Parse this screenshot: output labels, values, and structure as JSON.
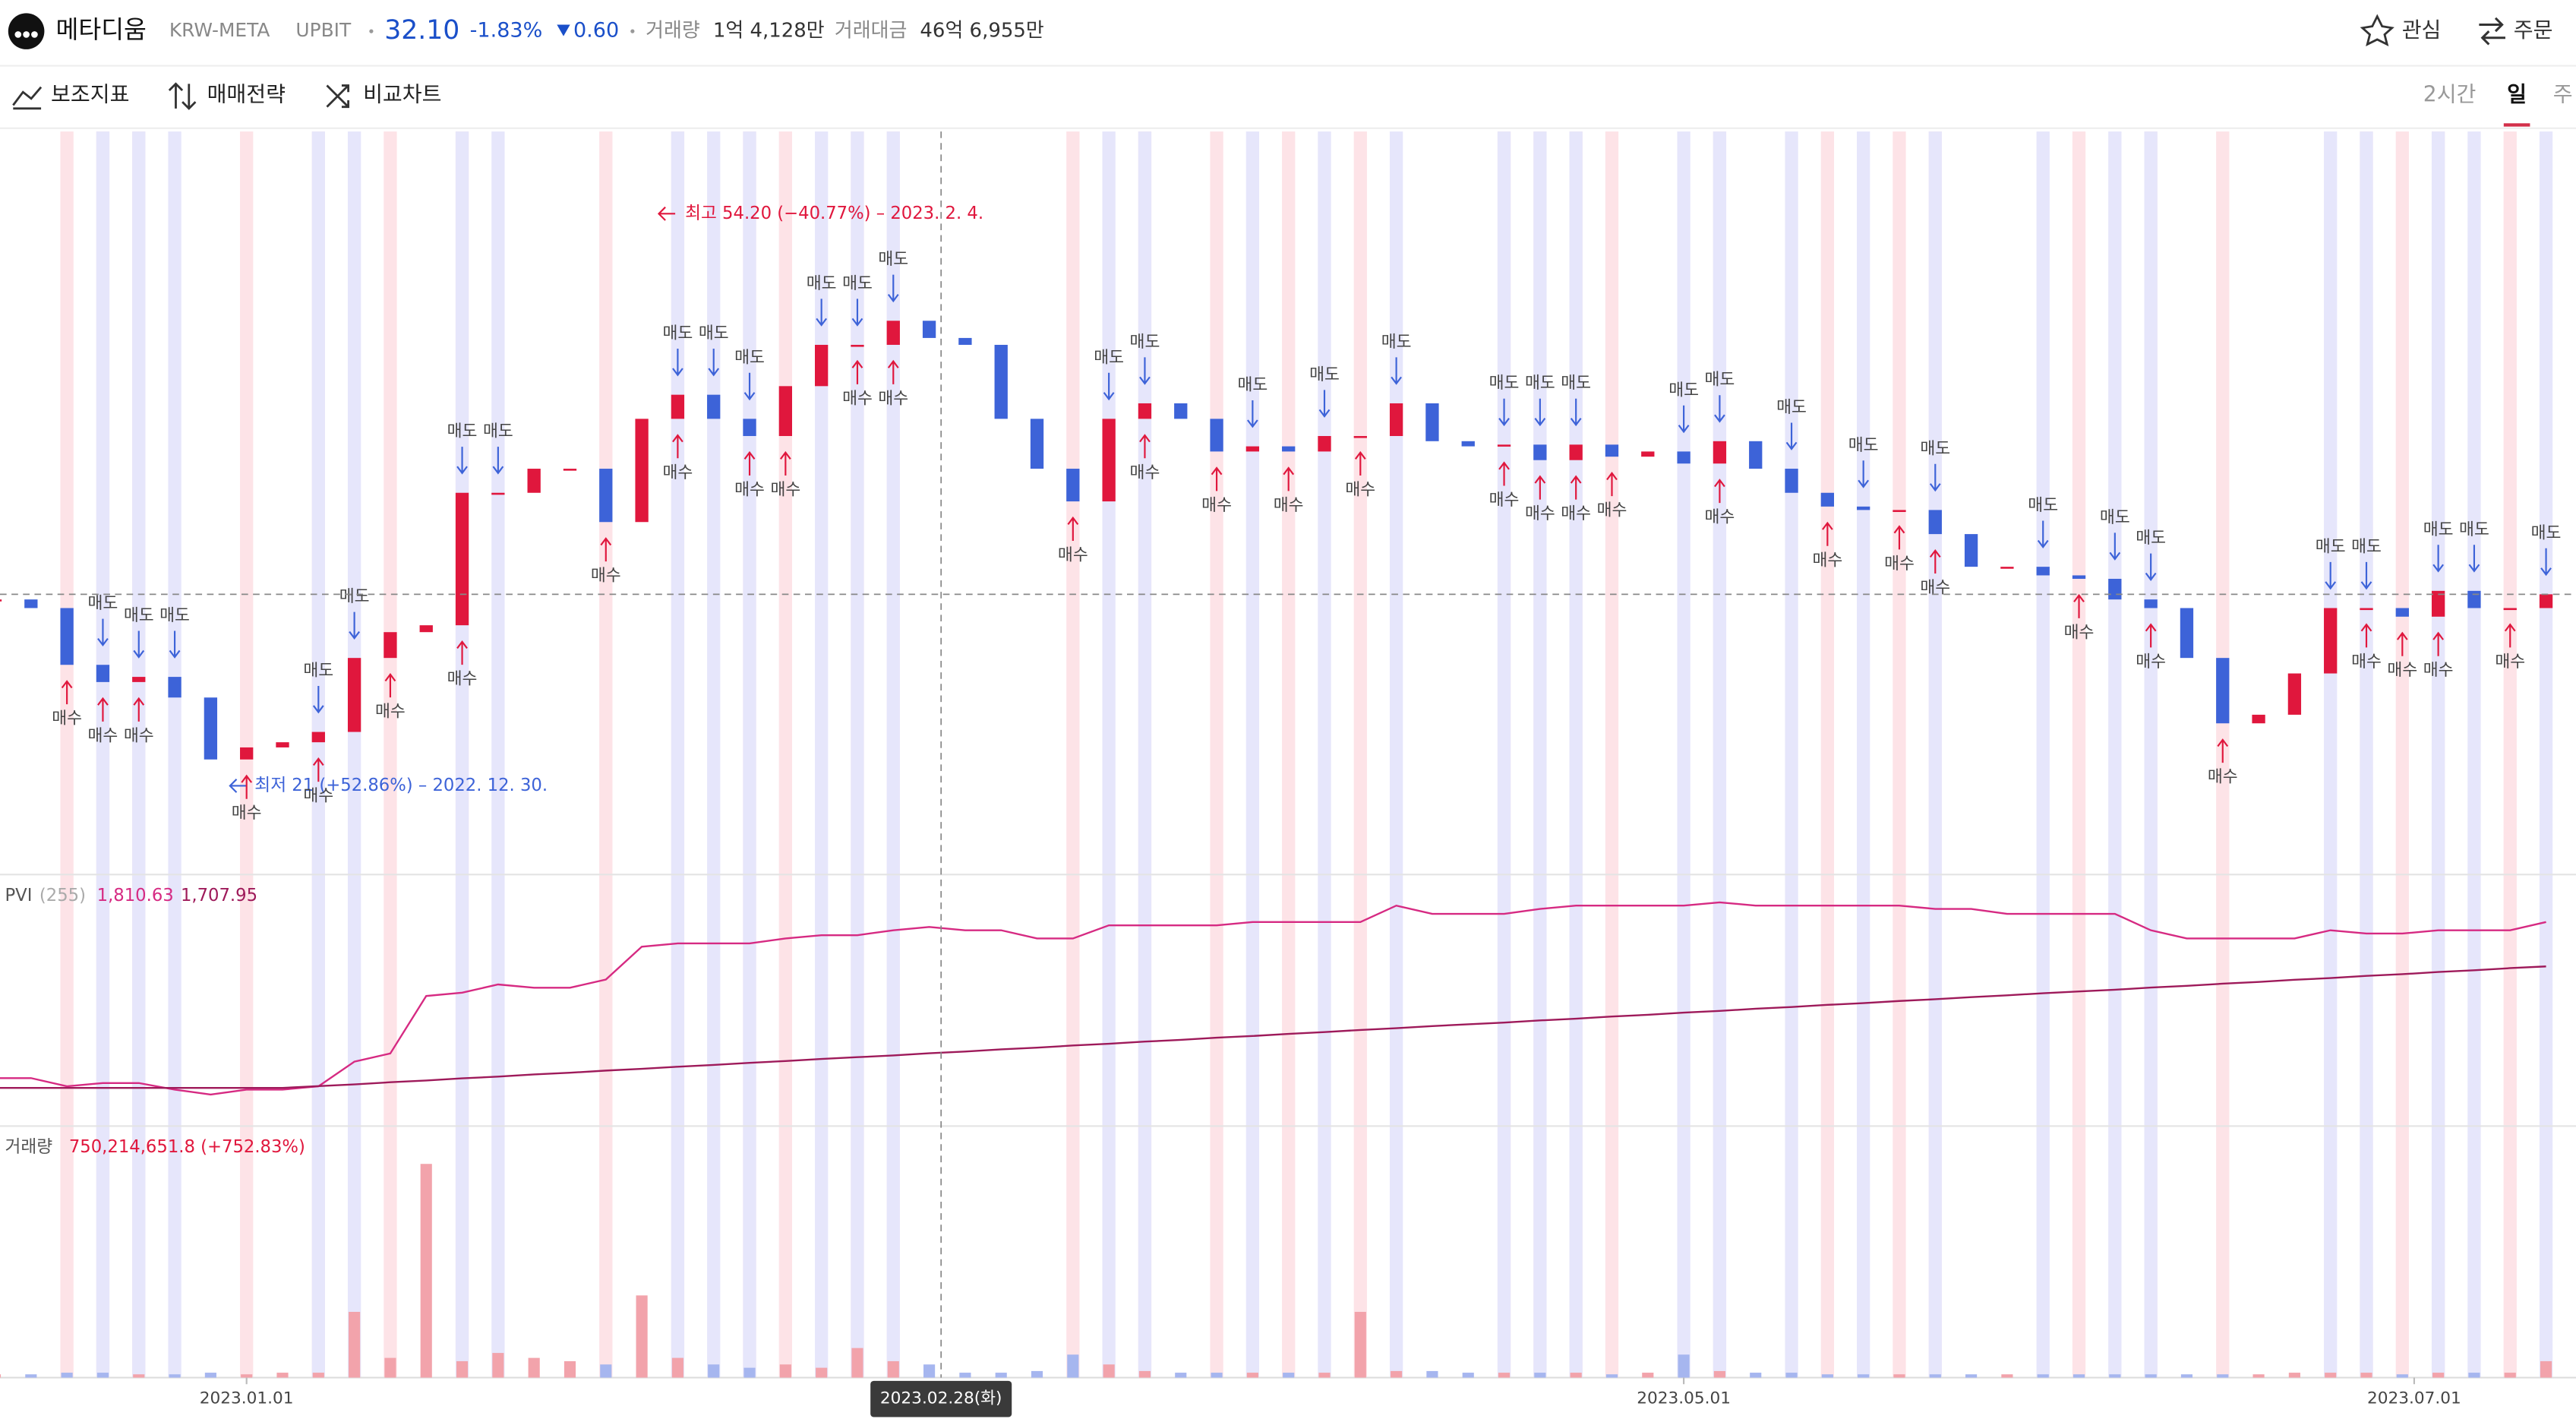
{
  "header": {
    "name": "메타디움",
    "market": "KRW-META",
    "exchange": "UPBIT",
    "price": "32.10",
    "change_rate": "-1.83%",
    "change": "0.60",
    "volume_label": "거래량",
    "volume": "1억 4,128만",
    "amount_label": "거래대금",
    "amount": "46억 6,955만",
    "watch": "관심",
    "order": "주문"
  },
  "toolbar": {
    "indicators": "보조지표",
    "strategy": "매매전략",
    "compare": "비교차트",
    "periods": [
      "2시간",
      "일",
      "주"
    ]
  },
  "chart_data": [
    {
      "type": "candlestick",
      "up_color": "#e0173d",
      "down_color": "#3d63d8",
      "ylim": [
        16,
        59
      ],
      "values": [
        31.8,
        31.3,
        28.0,
        27.0,
        27.3,
        26.1,
        22.5,
        23.2,
        23.5,
        24.1,
        28.4,
        29.9,
        30.3,
        38.0,
        38.0,
        39.4,
        39.4,
        36.3,
        42.3,
        43.7,
        42.3,
        41.3,
        44.2,
        46.6,
        46.6,
        48.0,
        47.0,
        46.6,
        42.3,
        39.4,
        37.5,
        42.3,
        43.2,
        42.3,
        40.4,
        40.7,
        40.4,
        41.3,
        41.3,
        43.2,
        41.0,
        40.7,
        40.8,
        39.9,
        40.8,
        40.1,
        40.4,
        39.7,
        41.0,
        39.4,
        38.0,
        37.2,
        37.0,
        37.0,
        35.6,
        33.7,
        33.7,
        33.2,
        33.0,
        31.8,
        31.3,
        28.4,
        24.6,
        25.1,
        27.5,
        31.3,
        31.3,
        30.8,
        32.3,
        31.3,
        31.3,
        32.1
      ],
      "high_text": "최고 54.20 (−40.77%) – 2023. 2. 4.",
      "low_text": "최저 21 (+52.86%) – 2022. 12. 30.",
      "signals": {
        "buy_label": "매수",
        "sell_label": "매도",
        "buy": [
          2,
          3,
          4,
          7,
          9,
          11,
          13,
          17,
          19,
          21,
          22,
          24,
          25,
          30,
          32,
          34,
          36,
          38,
          42,
          43,
          44,
          45,
          48,
          51,
          53,
          54,
          58,
          60,
          62,
          66,
          67,
          68,
          70
        ],
        "sell": [
          3,
          4,
          5,
          9,
          10,
          13,
          14,
          19,
          20,
          21,
          23,
          24,
          25,
          31,
          32,
          35,
          37,
          39,
          42,
          43,
          44,
          47,
          48,
          50,
          52,
          54,
          57,
          59,
          60,
          65,
          66,
          68,
          69,
          71
        ]
      }
    },
    {
      "type": "line",
      "title": "PVI",
      "subtitle": "(255)",
      "ylim": [
        1350,
        1890
      ],
      "series": [
        {
          "color": "#d62a82",
          "current_label": "1,810.63",
          "values": [
            1449.6,
            1449.6,
            1430.6,
            1438.2,
            1438.2,
            1423.0,
            1411.6,
            1423.0,
            1423.0,
            1430.6,
            1487.6,
            1506.6,
            1639.6,
            1647.2,
            1666.2,
            1658.6,
            1658.6,
            1677.6,
            1753.6,
            1761.2,
            1761.2,
            1761.2,
            1772.6,
            1780.2,
            1780.2,
            1791.6,
            1799.2,
            1791.6,
            1791.6,
            1772.6,
            1772.6,
            1803.0,
            1803.0,
            1803.0,
            1803.0,
            1810.6,
            1810.6,
            1810.6,
            1810.6,
            1848.6,
            1829.6,
            1829.6,
            1829.6,
            1841.0,
            1848.6,
            1848.6,
            1848.6,
            1848.6,
            1856.2,
            1848.6,
            1848.6,
            1848.6,
            1848.6,
            1848.6,
            1841.0,
            1841.0,
            1829.6,
            1829.6,
            1829.6,
            1829.6,
            1791.6,
            1772.6,
            1772.6,
            1772.6,
            1772.6,
            1791.6,
            1784.0,
            1784.0,
            1791.6,
            1791.6,
            1791.6,
            1810.63
          ]
        },
        {
          "color": "#9e1a5a",
          "current_label": "1,707.95",
          "values": [
            1427,
            1427,
            1427,
            1427,
            1427,
            1427,
            1427,
            1427,
            1427,
            1431,
            1435,
            1440,
            1444,
            1449,
            1453,
            1458,
            1462,
            1467,
            1471,
            1476,
            1480,
            1485,
            1489,
            1494,
            1498,
            1502,
            1507,
            1511,
            1516,
            1520,
            1525,
            1529,
            1534,
            1538,
            1543,
            1547,
            1552,
            1556,
            1561,
            1565,
            1570,
            1574,
            1578,
            1583,
            1587,
            1592,
            1596,
            1601,
            1605,
            1610,
            1614,
            1619,
            1623,
            1628,
            1632,
            1637,
            1641,
            1646,
            1650,
            1654,
            1659,
            1663,
            1668,
            1672,
            1677,
            1681,
            1686,
            1690,
            1695,
            1699,
            1704,
            1707.95
          ]
        }
      ]
    },
    {
      "type": "bar",
      "title": "거래량",
      "current_label": "750,214,651.8 (+752.83%)",
      "up_color": "#f2a3ab",
      "down_color": "#a6b6ef",
      "ylim": [
        0,
        10725000000
      ],
      "values": [
        150000000,
        150000000,
        225000000,
        225000000,
        150000000,
        150000000,
        225000000,
        150000000,
        225000000,
        225000000,
        3000000000,
        900000000,
        9750000000,
        750000000,
        1125000000,
        900000000,
        750000000,
        600000000,
        3750000000,
        900000000,
        600000000,
        450000000,
        600000000,
        450000000,
        1350000000,
        750000000,
        600000000,
        225000000,
        225000000,
        300000000,
        1050000000,
        600000000,
        300000000,
        225000000,
        225000000,
        225000000,
        225000000,
        225000000,
        3000000000,
        300000000,
        300000000,
        225000000,
        225000000,
        225000000,
        225000000,
        150000000,
        225000000,
        1050000000,
        300000000,
        225000000,
        225000000,
        150000000,
        150000000,
        150000000,
        150000000,
        150000000,
        150000000,
        150000000,
        150000000,
        150000000,
        150000000,
        150000000,
        150000000,
        150000000,
        225000000,
        225000000,
        225000000,
        150000000,
        225000000,
        225000000,
        225000000,
        750214651.8
      ],
      "xticks": [
        {
          "value": 7,
          "label": "2023.01.01"
        },
        {
          "value": 47,
          "label": "2023.05.01"
        },
        {
          "value": 67.33,
          "label": "2023.07.01"
        }
      ],
      "cursor": {
        "value": 26.33,
        "label": "2023.02.28(화)"
      }
    }
  ]
}
